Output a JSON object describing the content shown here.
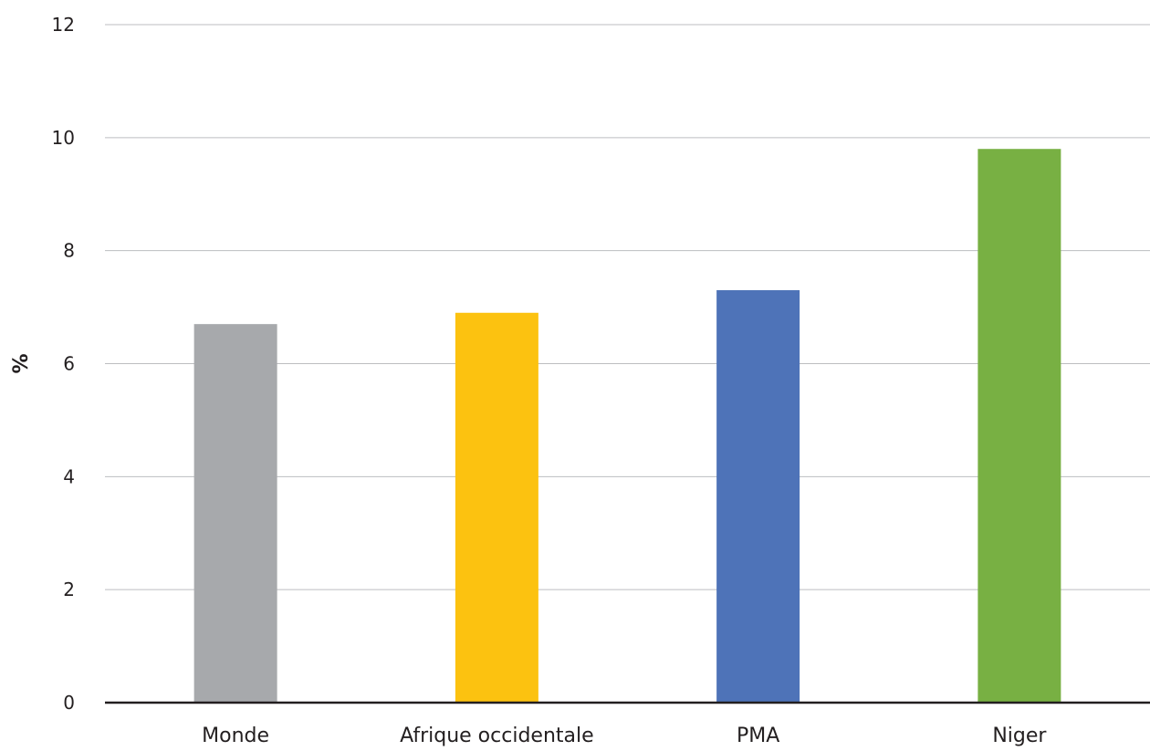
{
  "chart_data": {
    "type": "bar",
    "categories": [
      "Monde",
      "Afrique occidentale",
      "PMA",
      "Niger"
    ],
    "values": [
      6.7,
      6.9,
      7.3,
      9.8
    ],
    "colors": [
      "#a7a9ac",
      "#fcc210",
      "#4e73b8",
      "#78b043"
    ],
    "title": "",
    "xlabel": "",
    "ylabel": "%",
    "ylim": [
      0,
      12
    ],
    "yticks": [
      0,
      2,
      4,
      6,
      8,
      10,
      12
    ],
    "grid": true,
    "legend": "none"
  }
}
